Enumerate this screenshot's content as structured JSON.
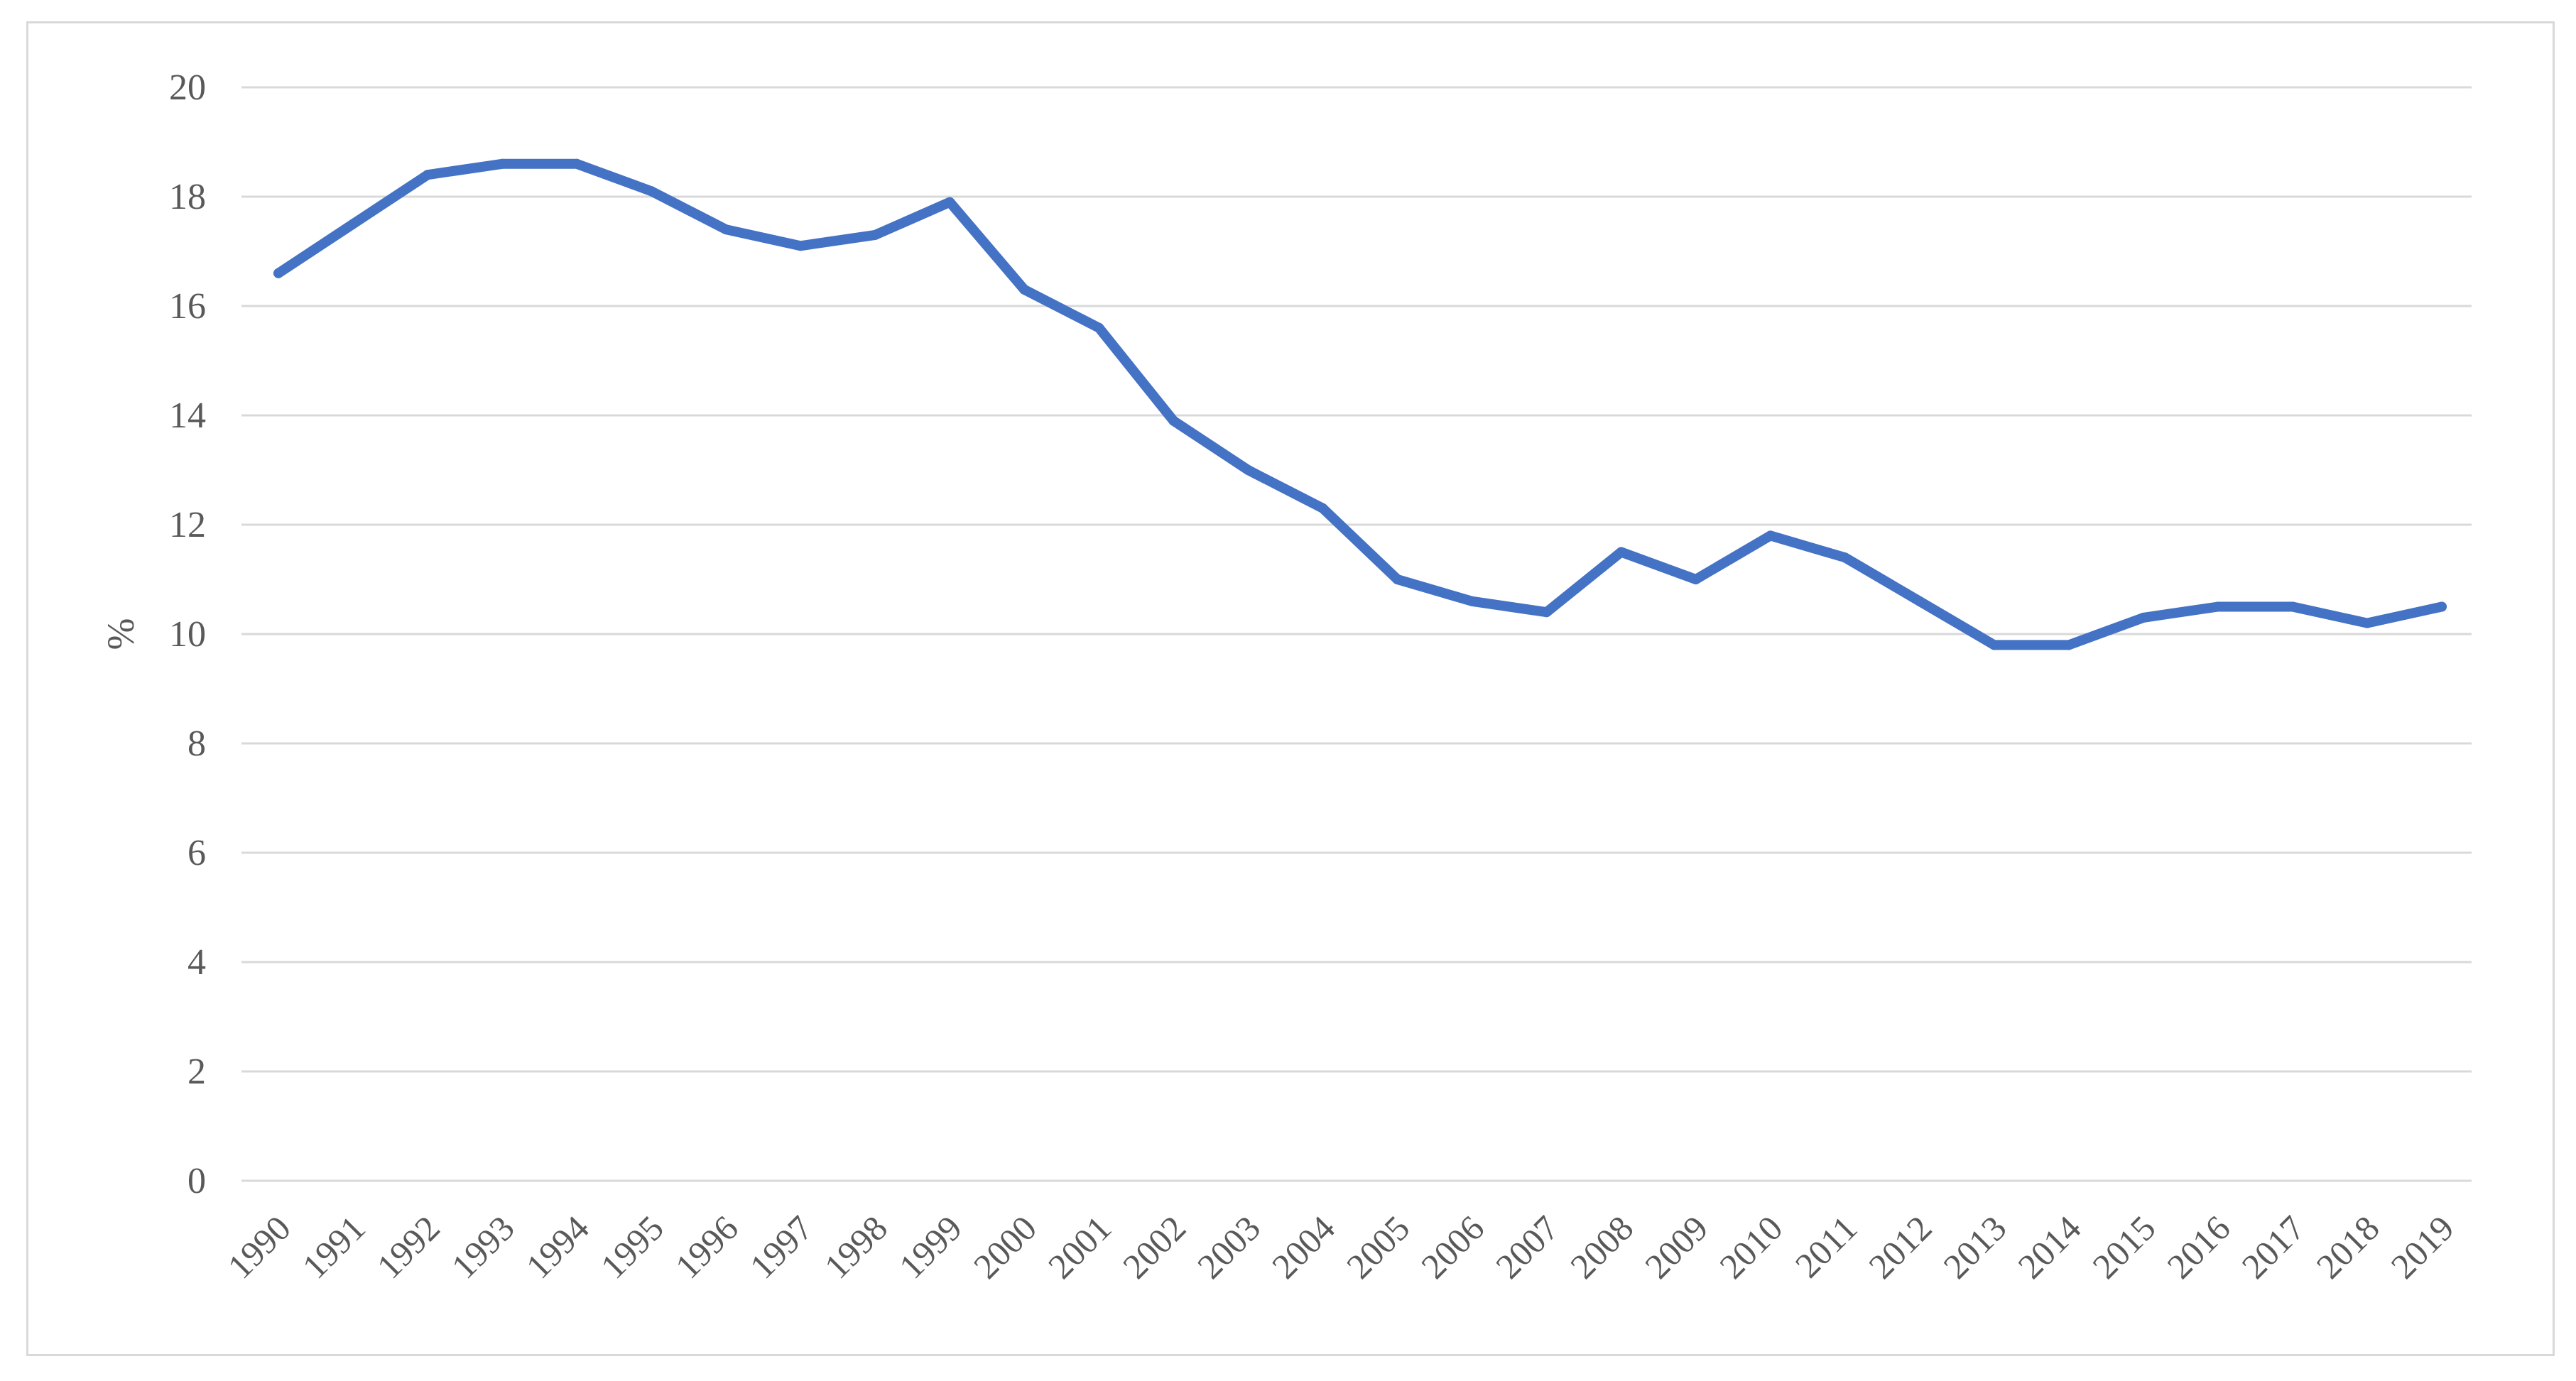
{
  "chart_data": {
    "type": "line",
    "title": "",
    "xlabel": "",
    "ylabel": "%",
    "ylim": [
      0,
      20
    ],
    "yticks": [
      0,
      2,
      4,
      6,
      8,
      10,
      12,
      14,
      16,
      18,
      20
    ],
    "grid": true,
    "legend": "none",
    "line_color": "#4472C4",
    "categories": [
      "1990",
      "1991",
      "1992",
      "1993",
      "1994",
      "1995",
      "1996",
      "1997",
      "1998",
      "1999",
      "2000",
      "2001",
      "2002",
      "2003",
      "2004",
      "2005",
      "2006",
      "2007",
      "2008",
      "2009",
      "2010",
      "2011",
      "2012",
      "2013",
      "2014",
      "2015",
      "2016",
      "2017",
      "2018",
      "2019"
    ],
    "series": [
      {
        "values": [
          16.6,
          17.5,
          18.4,
          18.6,
          18.6,
          18.1,
          17.4,
          17.1,
          17.3,
          17.9,
          16.3,
          15.6,
          13.9,
          13.0,
          12.3,
          11.0,
          10.6,
          10.4,
          11.5,
          11.0,
          11.8,
          11.4,
          10.6,
          9.8,
          9.8,
          10.3,
          10.5,
          10.5,
          10.2,
          10.5
        ]
      }
    ]
  }
}
